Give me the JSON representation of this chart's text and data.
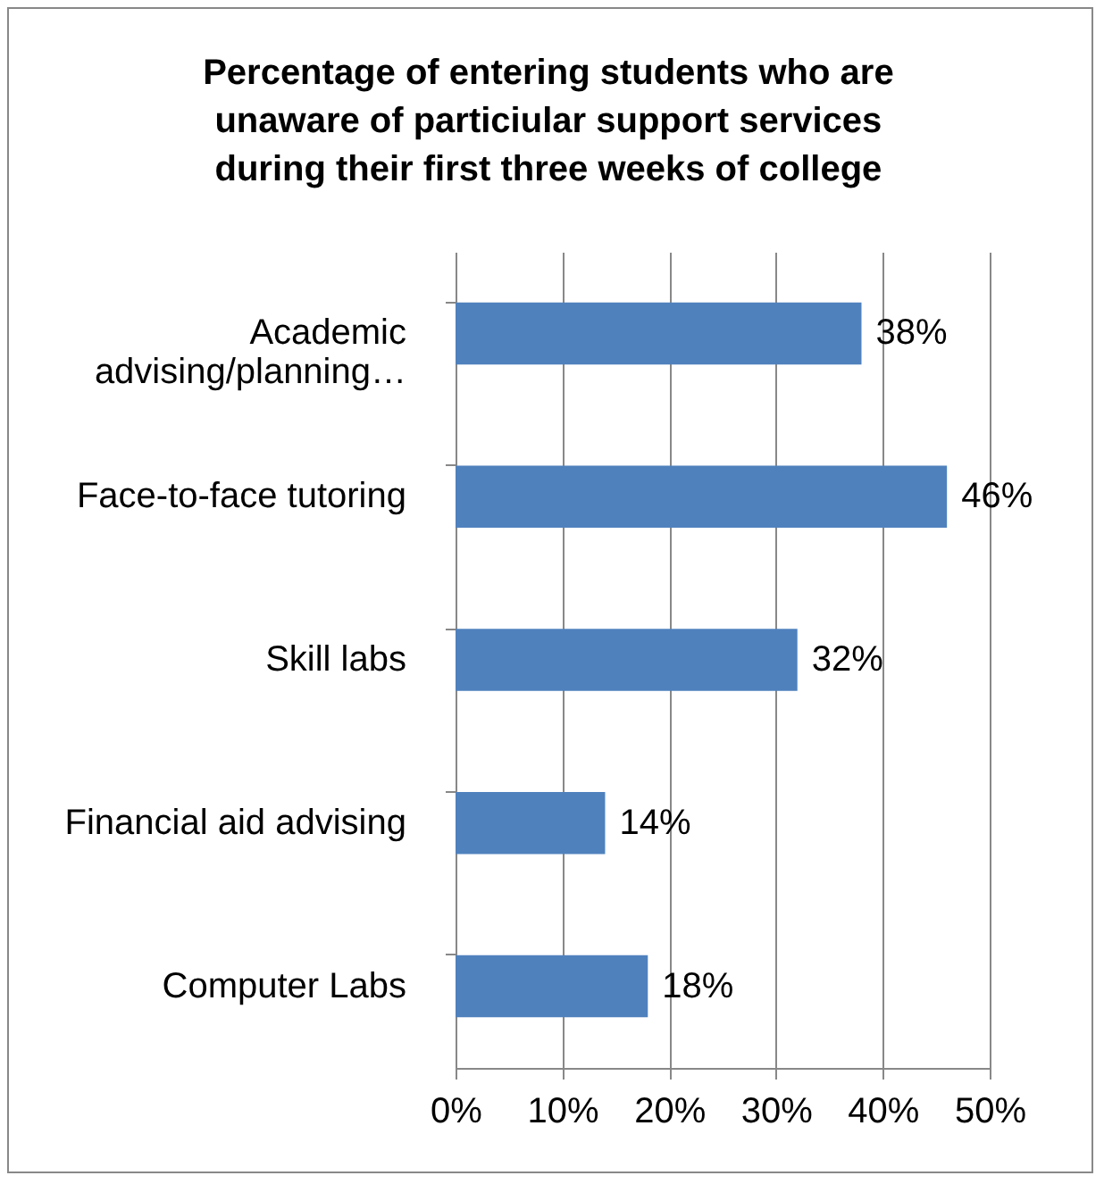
{
  "chart_data": {
    "type": "bar",
    "orientation": "horizontal",
    "title": "Percentage of entering students who are unaware of particiular support services during their first three weeks of college",
    "categories": [
      "Academic advising/planning…",
      "Face-to-face tutoring",
      "Skill labs",
      "Financial aid advising",
      "Computer Labs"
    ],
    "values": [
      38,
      46,
      32,
      14,
      18
    ],
    "color": "#4f81bd",
    "value_labels": [
      "38%",
      "46%",
      "32%",
      "14%",
      "18%"
    ],
    "xlim": [
      0,
      50
    ],
    "xticks": [
      {
        "value": 0,
        "label": "0%"
      },
      {
        "value": 10,
        "label": "10%"
      },
      {
        "value": 20,
        "label": "20%"
      },
      {
        "value": 30,
        "label": "30%"
      },
      {
        "value": 40,
        "label": "40%"
      },
      {
        "value": 50,
        "label": "50%"
      }
    ],
    "grid": "x"
  }
}
